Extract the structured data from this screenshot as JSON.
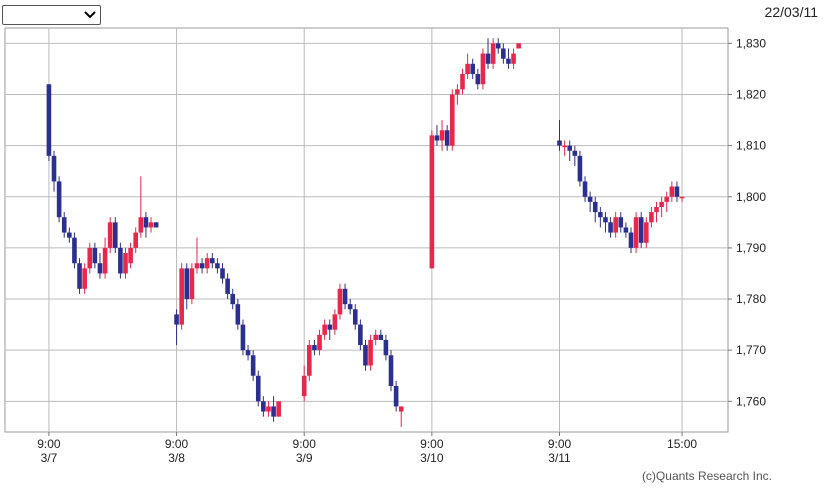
{
  "chart_data": {
    "type": "candlestick",
    "date_label": "22/03/11",
    "copyright": "(c)Quants Research Inc.",
    "up_color": "#e8274b",
    "down_color": "#2b2f8f",
    "grid": true,
    "ylim": [
      1754,
      1833
    ],
    "yticks": [
      {
        "value": 1760,
        "label": "1,760"
      },
      {
        "value": 1770,
        "label": "1,770"
      },
      {
        "value": 1780,
        "label": "1,780"
      },
      {
        "value": 1790,
        "label": "1,790"
      },
      {
        "value": 1800,
        "label": "1,800"
      },
      {
        "value": 1810,
        "label": "1,810"
      },
      {
        "value": 1820,
        "label": "1,820"
      },
      {
        "value": 1830,
        "label": "1,830"
      }
    ],
    "xlim": [
      -8.6,
      133
    ],
    "xticks": [
      {
        "value": 0,
        "label": "9:00"
      },
      {
        "value": 25,
        "label": "9:00"
      },
      {
        "value": 50,
        "label": "9:00"
      },
      {
        "value": 75,
        "label": "9:00"
      },
      {
        "value": 100,
        "label": "9:00"
      },
      {
        "value": 124,
        "label": "15:00"
      }
    ],
    "xtick_dates": [
      "3/7",
      "3/8",
      "3/9",
      "3/10",
      "3/11",
      null
    ],
    "x": [
      0,
      1,
      2,
      3,
      4,
      5,
      6,
      7,
      8,
      9,
      10,
      11,
      12,
      13,
      14,
      15,
      16,
      17,
      18,
      19,
      20,
      21,
      25,
      26,
      27,
      28,
      29,
      30,
      31,
      32,
      33,
      34,
      35,
      36,
      37,
      38,
      39,
      40,
      41,
      42,
      43,
      44,
      45,
      50,
      51,
      52,
      53,
      54,
      55,
      56,
      57,
      58,
      59,
      60,
      61,
      62,
      63,
      64,
      65,
      66,
      67,
      68,
      69,
      75,
      76,
      77,
      78,
      79,
      80,
      81,
      82,
      83,
      84,
      85,
      86,
      87,
      88,
      89,
      90,
      91,
      92,
      100,
      101,
      102,
      103,
      104,
      105,
      106,
      107,
      108,
      109,
      110,
      111,
      112,
      113,
      114,
      115,
      116,
      117,
      118,
      119,
      120,
      121,
      122,
      123,
      124
    ],
    "open": [
      1822,
      1808,
      1803,
      1796,
      1793,
      1792,
      1787,
      1782,
      1786,
      1790,
      1787,
      1785,
      1790,
      1795,
      1790,
      1785,
      1787,
      1790,
      1793,
      1796,
      1794,
      1795,
      1777,
      1775,
      1786,
      1780,
      1786,
      1787,
      1786,
      1788,
      1787,
      1786,
      1784,
      1781,
      1779,
      1775,
      1770,
      1769,
      1765,
      1760,
      1758,
      1759,
      1757,
      1761,
      1765,
      1771,
      1770,
      1773,
      1775,
      1774,
      1777,
      1782,
      1779,
      1778,
      1775,
      1771,
      1767,
      1772,
      1773,
      1772,
      1769,
      1763,
      1758,
      1786,
      1812,
      1811,
      1813,
      1810,
      1820,
      1821,
      1824,
      1826,
      1824,
      1822,
      1828,
      1826,
      1830,
      1829,
      1827,
      1826,
      1829,
      1811,
      1810,
      1810,
      1809,
      1808,
      1803,
      1800,
      1799,
      1797,
      1796,
      1795,
      1793,
      1796,
      1794,
      1793,
      1790,
      1796,
      1791,
      1795,
      1797,
      1798,
      1799,
      1800,
      1802,
      1800
    ],
    "high": [
      1822,
      1809,
      1804,
      1797,
      1794,
      1793,
      1788,
      1787,
      1791,
      1791,
      1789,
      1792,
      1796,
      1796,
      1791,
      1790,
      1791,
      1794,
      1804,
      1797,
      1796,
      1795,
      1778,
      1787,
      1787,
      1787,
      1792,
      1788,
      1789,
      1789,
      1788,
      1787,
      1785,
      1782,
      1780,
      1776,
      1771,
      1770,
      1766,
      1761,
      1760,
      1761,
      1760,
      1767,
      1772,
      1772,
      1774,
      1776,
      1776,
      1778,
      1783,
      1783,
      1780,
      1779,
      1776,
      1772,
      1773,
      1774,
      1774,
      1773,
      1770,
      1764,
      1759,
      1813,
      1814,
      1815,
      1814,
      1821,
      1822,
      1825,
      1828,
      1827,
      1825,
      1829,
      1831,
      1831,
      1831,
      1830,
      1829,
      1829,
      1830,
      1815,
      1811,
      1811,
      1810,
      1809,
      1804,
      1801,
      1800,
      1798,
      1797,
      1796,
      1797,
      1797,
      1795,
      1794,
      1797,
      1797,
      1796,
      1798,
      1799,
      1800,
      1801,
      1803,
      1803,
      1800
    ],
    "low": [
      1807,
      1801,
      1795,
      1792,
      1791,
      1786,
      1781,
      1781,
      1785,
      1786,
      1784,
      1784,
      1789,
      1789,
      1784,
      1784,
      1786,
      1789,
      1792,
      1792,
      1793,
      1794,
      1771,
      1774,
      1778,
      1779,
      1785,
      1785,
      1785,
      1786,
      1785,
      1783,
      1780,
      1778,
      1774,
      1769,
      1768,
      1764,
      1759,
      1757,
      1757,
      1756,
      1757,
      1760,
      1764,
      1769,
      1769,
      1772,
      1772,
      1773,
      1776,
      1778,
      1777,
      1774,
      1770,
      1766,
      1766,
      1771,
      1772,
      1768,
      1762,
      1758,
      1755,
      1786,
      1810,
      1809,
      1809,
      1809,
      1818,
      1820,
      1823,
      1823,
      1821,
      1821,
      1825,
      1825,
      1828,
      1826,
      1825,
      1825,
      1829,
      1809,
      1808,
      1807,
      1806,
      1802,
      1799,
      1797,
      1795,
      1794,
      1793,
      1792,
      1792,
      1793,
      1792,
      1789,
      1789,
      1790,
      1790,
      1794,
      1795,
      1796,
      1797,
      1799,
      1799,
      1799
    ],
    "close": [
      1808,
      1803,
      1796,
      1793,
      1792,
      1787,
      1782,
      1786,
      1790,
      1787,
      1785,
      1790,
      1795,
      1790,
      1785,
      1789,
      1790,
      1793,
      1796,
      1794,
      1795,
      1794,
      1775,
      1786,
      1780,
      1786,
      1787,
      1786,
      1788,
      1787,
      1786,
      1784,
      1781,
      1779,
      1775,
      1770,
      1769,
      1765,
      1760,
      1758,
      1759,
      1757,
      1760,
      1765,
      1771,
      1770,
      1773,
      1775,
      1774,
      1777,
      1782,
      1779,
      1778,
      1775,
      1771,
      1767,
      1772,
      1773,
      1772,
      1769,
      1763,
      1759,
      1759,
      1812,
      1811,
      1813,
      1810,
      1820,
      1821,
      1824,
      1826,
      1824,
      1822,
      1828,
      1826,
      1830,
      1829,
      1827,
      1826,
      1828,
      1830,
      1810,
      1810,
      1809,
      1808,
      1803,
      1800,
      1799,
      1797,
      1796,
      1795,
      1793,
      1796,
      1794,
      1793,
      1790,
      1796,
      1791,
      1795,
      1797,
      1798,
      1799,
      1800,
      1802,
      1800,
      1800
    ]
  }
}
